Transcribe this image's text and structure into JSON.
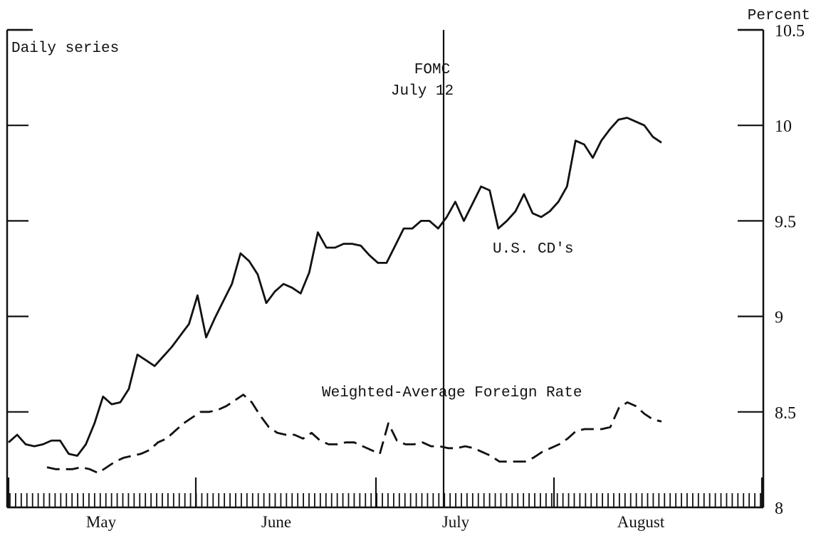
{
  "chart_data": {
    "type": "line",
    "corner_label": "Daily series",
    "ylabel": "Percent",
    "ylim": [
      8,
      10.5
    ],
    "yticks": [
      8,
      8.5,
      9,
      9.5,
      10,
      10.5
    ],
    "ytick_labels": [
      "8",
      "8.5",
      "9",
      "9.5",
      "10",
      "10.5"
    ],
    "months": [
      "May",
      "June",
      "July",
      "August"
    ],
    "annotation": {
      "line1": "FOMC",
      "line2": "July 12"
    },
    "series": [
      {
        "name": "U.S. CD's",
        "color": "#111111",
        "style": "solid",
        "values": [
          8.34,
          8.38,
          8.33,
          8.32,
          8.33,
          8.35,
          8.35,
          8.28,
          8.27,
          8.33,
          8.44,
          8.58,
          8.54,
          8.55,
          8.62,
          8.8,
          8.77,
          8.74,
          8.79,
          8.84,
          8.9,
          8.96,
          9.11,
          8.89,
          8.99,
          9.08,
          9.17,
          9.33,
          9.29,
          9.22,
          9.07,
          9.13,
          9.17,
          9.15,
          9.12,
          9.23,
          9.44,
          9.36,
          9.36,
          9.38,
          9.38,
          9.37,
          9.32,
          9.28,
          9.28,
          9.37,
          9.46,
          9.46,
          9.5,
          9.5,
          9.46,
          9.52,
          9.6,
          9.5,
          9.59,
          9.68,
          9.66,
          9.46,
          9.5,
          9.55,
          9.64,
          9.54,
          9.52,
          9.55,
          9.6,
          9.68,
          9.92,
          9.9,
          9.83,
          9.92,
          9.98,
          10.03,
          10.04,
          10.02,
          10.0,
          9.94,
          9.91
        ]
      },
      {
        "name": "Weighted-Average Foreign Rate",
        "color": "#111111",
        "style": "dashed",
        "values": [
          null,
          null,
          8.21,
          8.2,
          8.2,
          8.2,
          8.21,
          8.2,
          8.18,
          8.21,
          8.24,
          8.26,
          8.27,
          8.28,
          8.3,
          8.34,
          8.36,
          8.4,
          8.44,
          8.47,
          8.5,
          8.5,
          8.51,
          8.53,
          8.56,
          8.59,
          8.55,
          8.48,
          8.42,
          8.39,
          8.38,
          8.38,
          8.36,
          8.39,
          8.35,
          8.33,
          8.33,
          8.34,
          8.34,
          8.32,
          8.3,
          8.28,
          8.44,
          8.35,
          8.33,
          8.33,
          8.34,
          8.32,
          8.32,
          8.31,
          8.31,
          8.32,
          8.31,
          8.29,
          8.27,
          8.24,
          8.24,
          8.24,
          8.24,
          8.26,
          8.29,
          8.31,
          8.33,
          8.36,
          8.4,
          8.41,
          8.41,
          8.41,
          8.42,
          8.52,
          8.55,
          8.53,
          8.49,
          8.46,
          8.45
        ]
      }
    ]
  }
}
